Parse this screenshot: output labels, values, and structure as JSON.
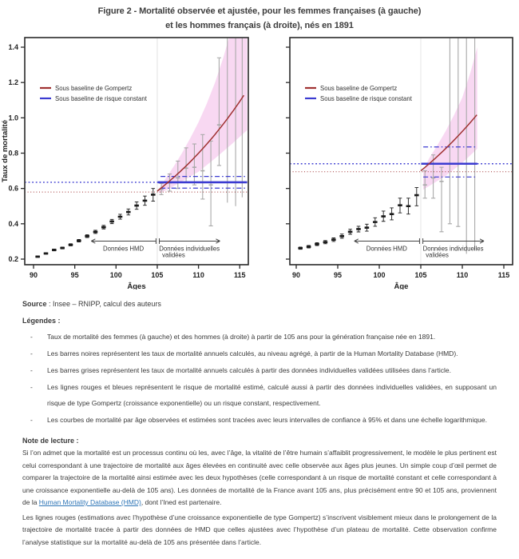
{
  "title": {
    "line1": "Figure 2 - Mortalité observée et ajustée, pour les femmes françaises (à gauche)",
    "line2": "et les hommes français (à droite), nés en 1891"
  },
  "source": {
    "label": "Source",
    "text": " : Insee – RNIPP, calcul des auteurs"
  },
  "legends": {
    "heading": "Légendes :",
    "items": [
      "Taux de mortalité des femmes (à gauche) et des hommes (à droite) à partir de 105 ans pour la génération française née en 1891.",
      "Les barres noires représentent les taux de mortalité annuels calculés, au niveau agrégé, à partir de la Human Mortality Database (HMD).",
      "Les barres grises représentent les taux de mortalité annuels calculés à partir des données individuelles validées utilisées dans l’article.",
      "Les lignes rouges et bleues représentent le risque de mortalité estimé, calculé aussi à partir des données individuelles validées, en supposant un risque de type Gompertz (croissance exponentielle) ou un risque constant, respectivement.",
      "Les courbes de mortalité par âge observées et estimées sont tracées avec leurs intervalles de confiance à 95% et dans une échelle logarithmique."
    ]
  },
  "note": {
    "heading": "Note de lecture :",
    "p1_pre": "Si l’on admet que la mortalité est un processus continu où les, avec l’âge, la vitalité de l’être humain s’affaiblit progressivement, le modèle le plus pertinent est celui correspondant à une trajectoire de mortalité aux âges élevées en continuité avec celle observée aux âges plus jeunes. Un simple coup d’œil permet de comparer la trajectoire de la mortalité ainsi estimée avec les deux hypothèses (celle correspondant à un risque de mortalité constant et celle correspondant à une croissance exponentielle au-delà de 105 ans). Les données de mortalité de la France avant 105 ans, plus précisément entre 90 et 105 ans, proviennent de la ",
    "link_text": "Human Mortality Database (HMD)",
    "p1_post": ", dont l’Ined est partenaire.",
    "p2": "Les lignes rouges (estimations avec l’hypothèse d’une croissance exponentielle de type Gompertz) s’inscrivent visiblement mieux dans le prolongement de la trajectoire de mortalité tracée à partir des données de HMD que celles ajustées avec l’hypothèse d’un plateau de mortalité. Cette observation confirme l’analyse statistique sur la mortalité au-delà de 105 ans présentée dans l’article."
  },
  "colors": {
    "gompertz_red": "#a03232",
    "constant_blue": "#3b3bd1",
    "band_pink": "#f8d8f2",
    "gray_bar": "#a9a9a9",
    "black_bar": "#1c1c1c",
    "link_blue": "#2e75b6",
    "pale_guide": "#e4e4e4",
    "text": "#3a3a3a"
  },
  "chart_data": [
    {
      "type": "errorbar+line",
      "name": "femmes",
      "xlabel": "Âges",
      "ylabel": "Taux de mortalité",
      "show_y_labels": true,
      "x_ticks": [
        90,
        95,
        100,
        105,
        110,
        115
      ],
      "y_ticks": [
        0.2,
        0.4,
        0.6,
        0.8,
        1.0,
        1.2,
        1.4
      ],
      "xlim": [
        88.9,
        116.1
      ],
      "ylim": [
        0.17,
        1.46
      ],
      "legend": [
        "Sous baseline de Gompertz",
        "Sous baseline de risque constant"
      ],
      "hmd_series": [
        {
          "age": 90.5,
          "v": 0.214,
          "lo": 0.21,
          "hi": 0.218
        },
        {
          "age": 91.5,
          "v": 0.232,
          "lo": 0.228,
          "hi": 0.236
        },
        {
          "age": 92.5,
          "v": 0.252,
          "lo": 0.247,
          "hi": 0.257
        },
        {
          "age": 93.5,
          "v": 0.263,
          "lo": 0.258,
          "hi": 0.268
        },
        {
          "age": 94.5,
          "v": 0.281,
          "lo": 0.275,
          "hi": 0.287
        },
        {
          "age": 95.5,
          "v": 0.304,
          "lo": 0.297,
          "hi": 0.311
        },
        {
          "age": 96.5,
          "v": 0.33,
          "lo": 0.322,
          "hi": 0.338
        },
        {
          "age": 97.5,
          "v": 0.354,
          "lo": 0.345,
          "hi": 0.363
        },
        {
          "age": 98.5,
          "v": 0.381,
          "lo": 0.371,
          "hi": 0.391
        },
        {
          "age": 99.5,
          "v": 0.413,
          "lo": 0.401,
          "hi": 0.425
        },
        {
          "age": 100.5,
          "v": 0.44,
          "lo": 0.426,
          "hi": 0.454
        },
        {
          "age": 101.5,
          "v": 0.467,
          "lo": 0.45,
          "hi": 0.484
        },
        {
          "age": 102.5,
          "v": 0.503,
          "lo": 0.482,
          "hi": 0.524
        },
        {
          "age": 103.5,
          "v": 0.531,
          "lo": 0.505,
          "hi": 0.557
        },
        {
          "age": 104.5,
          "v": 0.565,
          "lo": 0.528,
          "hi": 0.6
        }
      ],
      "validated_series": [
        {
          "age": 105.5,
          "v": 0.595,
          "lo": 0.565,
          "hi": 0.628
        },
        {
          "age": 106.5,
          "v": 0.632,
          "lo": 0.585,
          "hi": 0.682
        },
        {
          "age": 107.5,
          "v": 0.66,
          "lo": 0.6,
          "hi": 0.755
        },
        {
          "age": 108.5,
          "v": 0.715,
          "lo": 0.635,
          "hi": 0.83
        },
        {
          "age": 109.5,
          "v": 0.72,
          "lo": 0.62,
          "hi": 0.852
        },
        {
          "age": 110.5,
          "v": 0.7,
          "lo": 0.54,
          "hi": 0.905
        },
        {
          "age": 111.5,
          "v": 0.62,
          "lo": 0.388,
          "hi": 0.868
        },
        {
          "age": 112.5,
          "v": 0.96,
          "lo": 0.73,
          "hi": 1.34
        },
        {
          "age": 113.5,
          "lo": 0.52,
          "hi": 1.5,
          "caps": "none"
        },
        {
          "age": 114.5,
          "lo": 0.5,
          "hi": 1.5,
          "caps": "none"
        },
        {
          "age": 115.3,
          "lo": 0.55,
          "hi": 1.5,
          "caps": "none"
        }
      ],
      "gompertz": {
        "x0": 105,
        "x1": 115.6,
        "v0": 0.585,
        "rate": 0.0625
      },
      "band": {
        "upper": [
          [
            105.2,
            0.595
          ],
          [
            106,
            0.655
          ],
          [
            107,
            0.725
          ],
          [
            108,
            0.8
          ],
          [
            109,
            0.885
          ],
          [
            110,
            0.975
          ],
          [
            111,
            1.08
          ],
          [
            112,
            1.2
          ],
          [
            113,
            1.34
          ],
          [
            113.8,
            1.47
          ],
          [
            115.9,
            1.47
          ]
        ],
        "lower": [
          [
            115.9,
            0.93
          ],
          [
            114,
            0.85
          ],
          [
            112,
            0.77
          ],
          [
            110,
            0.695
          ],
          [
            108,
            0.64
          ],
          [
            106.5,
            0.6
          ],
          [
            105.5,
            0.578
          ],
          [
            105.2,
            0.572
          ]
        ]
      },
      "constant_hazard": {
        "v": 0.635,
        "x0": 105.05,
        "x1": 115.9,
        "ci_lo": 0.602,
        "ci_hi": 0.668,
        "ci_x0": 105.4
      },
      "ref_dotted": {
        "blue": 0.635,
        "red": 0.58
      },
      "annotations": {
        "hmd_label": "Données HMD",
        "valid_label_1": "Données individuelles",
        "valid_label_2": "validées",
        "arrow1": [
          97,
          104.85
        ],
        "arrow2": [
          105.25,
          112.6
        ],
        "arrow_y": 0.302
      }
    },
    {
      "type": "errorbar+line",
      "name": "hommes",
      "xlabel": "Âge",
      "ylabel": "",
      "show_y_labels": false,
      "x_ticks": [
        90,
        95,
        100,
        105,
        110,
        115
      ],
      "y_ticks": [
        0.2,
        0.4,
        0.6,
        0.8,
        1.0,
        1.2,
        1.4
      ],
      "xlim": [
        88.9,
        116.1
      ],
      "ylim": [
        0.17,
        1.46
      ],
      "legend": [
        "Sous baseline de Gompertz",
        "Sous baseline de risque constant"
      ],
      "hmd_series": [
        {
          "age": 90.5,
          "v": 0.262,
          "lo": 0.256,
          "hi": 0.268
        },
        {
          "age": 91.5,
          "v": 0.27,
          "lo": 0.263,
          "hi": 0.277
        },
        {
          "age": 92.5,
          "v": 0.285,
          "lo": 0.277,
          "hi": 0.293
        },
        {
          "age": 93.5,
          "v": 0.296,
          "lo": 0.287,
          "hi": 0.305
        },
        {
          "age": 94.5,
          "v": 0.31,
          "lo": 0.3,
          "hi": 0.32
        },
        {
          "age": 95.5,
          "v": 0.33,
          "lo": 0.318,
          "hi": 0.342
        },
        {
          "age": 96.5,
          "v": 0.355,
          "lo": 0.341,
          "hi": 0.369
        },
        {
          "age": 97.5,
          "v": 0.37,
          "lo": 0.354,
          "hi": 0.386
        },
        {
          "age": 98.5,
          "v": 0.378,
          "lo": 0.358,
          "hi": 0.398
        },
        {
          "age": 99.5,
          "v": 0.41,
          "lo": 0.386,
          "hi": 0.434
        },
        {
          "age": 100.5,
          "v": 0.442,
          "lo": 0.414,
          "hi": 0.472
        },
        {
          "age": 101.5,
          "v": 0.455,
          "lo": 0.422,
          "hi": 0.49
        },
        {
          "age": 102.5,
          "v": 0.505,
          "lo": 0.462,
          "hi": 0.545
        },
        {
          "age": 103.5,
          "v": 0.5,
          "lo": 0.455,
          "hi": 0.545
        },
        {
          "age": 104.5,
          "v": 0.562,
          "lo": 0.502,
          "hi": 0.605
        }
      ],
      "validated_series": [
        {
          "age": 105.5,
          "v": 0.62,
          "lo": 0.545,
          "hi": 0.7
        },
        {
          "age": 106.5,
          "v": 0.66,
          "lo": 0.545,
          "hi": 0.79
        },
        {
          "age": 107.5,
          "v": 0.64,
          "lo": 0.355,
          "hi": 0.72
        },
        {
          "age": 108.5,
          "lo": 0.4,
          "hi": 1.5,
          "caps": "bottom"
        },
        {
          "age": 109.5,
          "lo": 0.385,
          "hi": 1.5,
          "caps": "bottom"
        },
        {
          "age": 110.5,
          "lo": 0.23,
          "hi": 1.5,
          "caps": "none"
        },
        {
          "age": 111.5,
          "lo": 0.25,
          "hi": 1.5,
          "caps": "none"
        }
      ],
      "gompertz": {
        "x0": 105,
        "x1": 111.8,
        "v0": 0.7,
        "rate": 0.0553
      },
      "band": {
        "upper": [
          [
            105.3,
            0.7
          ],
          [
            106,
            0.77
          ],
          [
            107,
            0.845
          ],
          [
            108,
            0.925
          ],
          [
            109,
            1.015
          ],
          [
            110,
            1.115
          ],
          [
            111,
            1.26
          ],
          [
            111.8,
            1.4
          ]
        ],
        "lower": [
          [
            111.8,
            0.825
          ],
          [
            110,
            0.745
          ],
          [
            108,
            0.672
          ],
          [
            106.5,
            0.628
          ],
          [
            105.5,
            0.6
          ],
          [
            105.3,
            0.592
          ]
        ]
      },
      "constant_hazard": {
        "v": 0.74,
        "x0": 105.05,
        "x1": 111.8,
        "ci_lo": 0.665,
        "ci_hi": 0.835,
        "ci_x0": 105.3
      },
      "ref_dotted": {
        "blue": 0.74,
        "red": 0.695
      },
      "annotations": {
        "hmd_label": "Données HMD",
        "valid_label_1": "Données individuelles",
        "valid_label_2": "validées",
        "arrow1": [
          97,
          104.85
        ],
        "arrow2": [
          105.25,
          112.6
        ],
        "arrow_y": 0.302
      }
    }
  ]
}
